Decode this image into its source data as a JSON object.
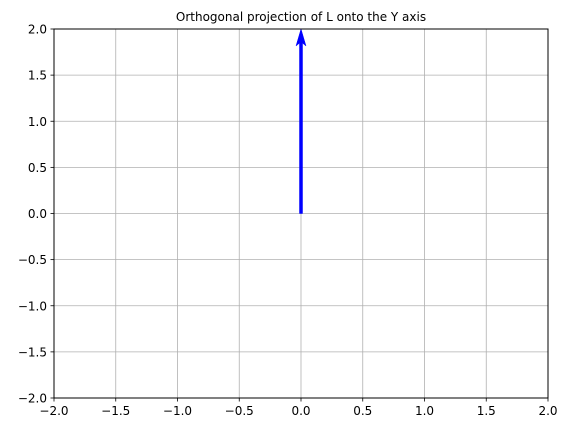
{
  "chart_data": {
    "type": "quiver",
    "title": "Orthogonal projection of L onto the Y axis",
    "xlabel": "",
    "ylabel": "",
    "xlim": [
      -2,
      2
    ],
    "ylim": [
      -2,
      2
    ],
    "grid": true,
    "x_ticks": [
      -2.0,
      -1.5,
      -1.0,
      -0.5,
      0.0,
      0.5,
      1.0,
      1.5,
      2.0
    ],
    "y_ticks": [
      -2.0,
      -1.5,
      -1.0,
      -0.5,
      0.0,
      0.5,
      1.0,
      1.5,
      2.0
    ],
    "x_tick_labels": [
      "−2.0",
      "−1.5",
      "−1.0",
      "−0.5",
      "0.0",
      "0.5",
      "1.0",
      "1.5",
      "2.0"
    ],
    "y_tick_labels": [
      "−2.0",
      "−1.5",
      "−1.0",
      "−0.5",
      "0.0",
      "0.5",
      "1.0",
      "1.5",
      "2.0"
    ],
    "vectors": [
      {
        "name": "projection-of-L",
        "x0": 0,
        "y0": 0,
        "dx": 0,
        "dy": 2,
        "color": "#0000ff"
      }
    ]
  }
}
